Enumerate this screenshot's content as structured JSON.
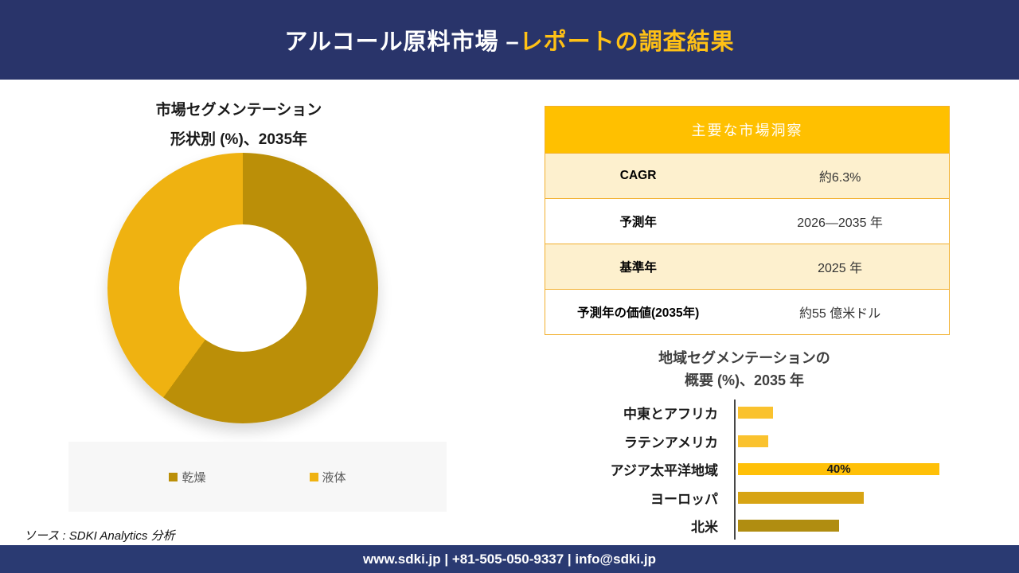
{
  "header": {
    "title_white": "アルコール原料市場 –",
    "title_gold": "レポートの調査結果"
  },
  "pie_section": {
    "title_line1": "市場セグメンテーション",
    "title_line2": "形状別 (%)、2035年"
  },
  "insights_table": {
    "header": "主要な市場洞察",
    "rows": [
      {
        "label": "CAGR",
        "value": "約6.3%"
      },
      {
        "label": "予測年",
        "value": "2026—2035 年"
      },
      {
        "label": "基準年",
        "value": "2025 年"
      },
      {
        "label": "予測年の価値(2035年)",
        "value": "約55 億米ドル"
      }
    ]
  },
  "bar_section": {
    "title_line1": "地域セグメンテーションの",
    "title_line2": "概要 (%)、2035 年"
  },
  "source": {
    "text": "ソース : SDKI Analytics 分析"
  },
  "footer": {
    "text": "www.sdki.jp | +81-505-050-9337 | info@sdki.jp"
  },
  "colors": {
    "header_bg": "#29346A",
    "footer_bg": "#2A3A72",
    "title_gold": "#FFC115",
    "table_header_bg": "#FFC000",
    "table_row_alt": "#FDF0CE",
    "table_border": "#F2B02F",
    "legend_bg": "#F7F7F7",
    "legend_text": "#5A5A5A",
    "axis_color": "#474747"
  },
  "chart_data": [
    {
      "type": "pie",
      "donut": true,
      "title": "市場セグメンテーション 形状別 (%)、2035年",
      "labels": [
        "乾燥",
        "液体"
      ],
      "values": [
        60,
        40
      ],
      "colors": [
        "#BB8F08",
        "#EFB211"
      ],
      "legend_position": "bottom"
    },
    {
      "type": "bar",
      "orientation": "horizontal",
      "title": "地域セグメンテーションの概要 (%)、2035 年",
      "categories": [
        "中東とアフリカ",
        "ラテンアメリカ",
        "アジア太平洋地域",
        "ヨーロッパ",
        "北米"
      ],
      "values": [
        7,
        6,
        40,
        25,
        20
      ],
      "colors": [
        "#FAC22E",
        "#FAC22E",
        "#FFC008",
        "#D7A414",
        "#B08D11"
      ],
      "data_labels": [
        "",
        "",
        "40%",
        "",
        ""
      ],
      "xlim": [
        0,
        45
      ],
      "grid": false,
      "legend_position": "none"
    }
  ]
}
